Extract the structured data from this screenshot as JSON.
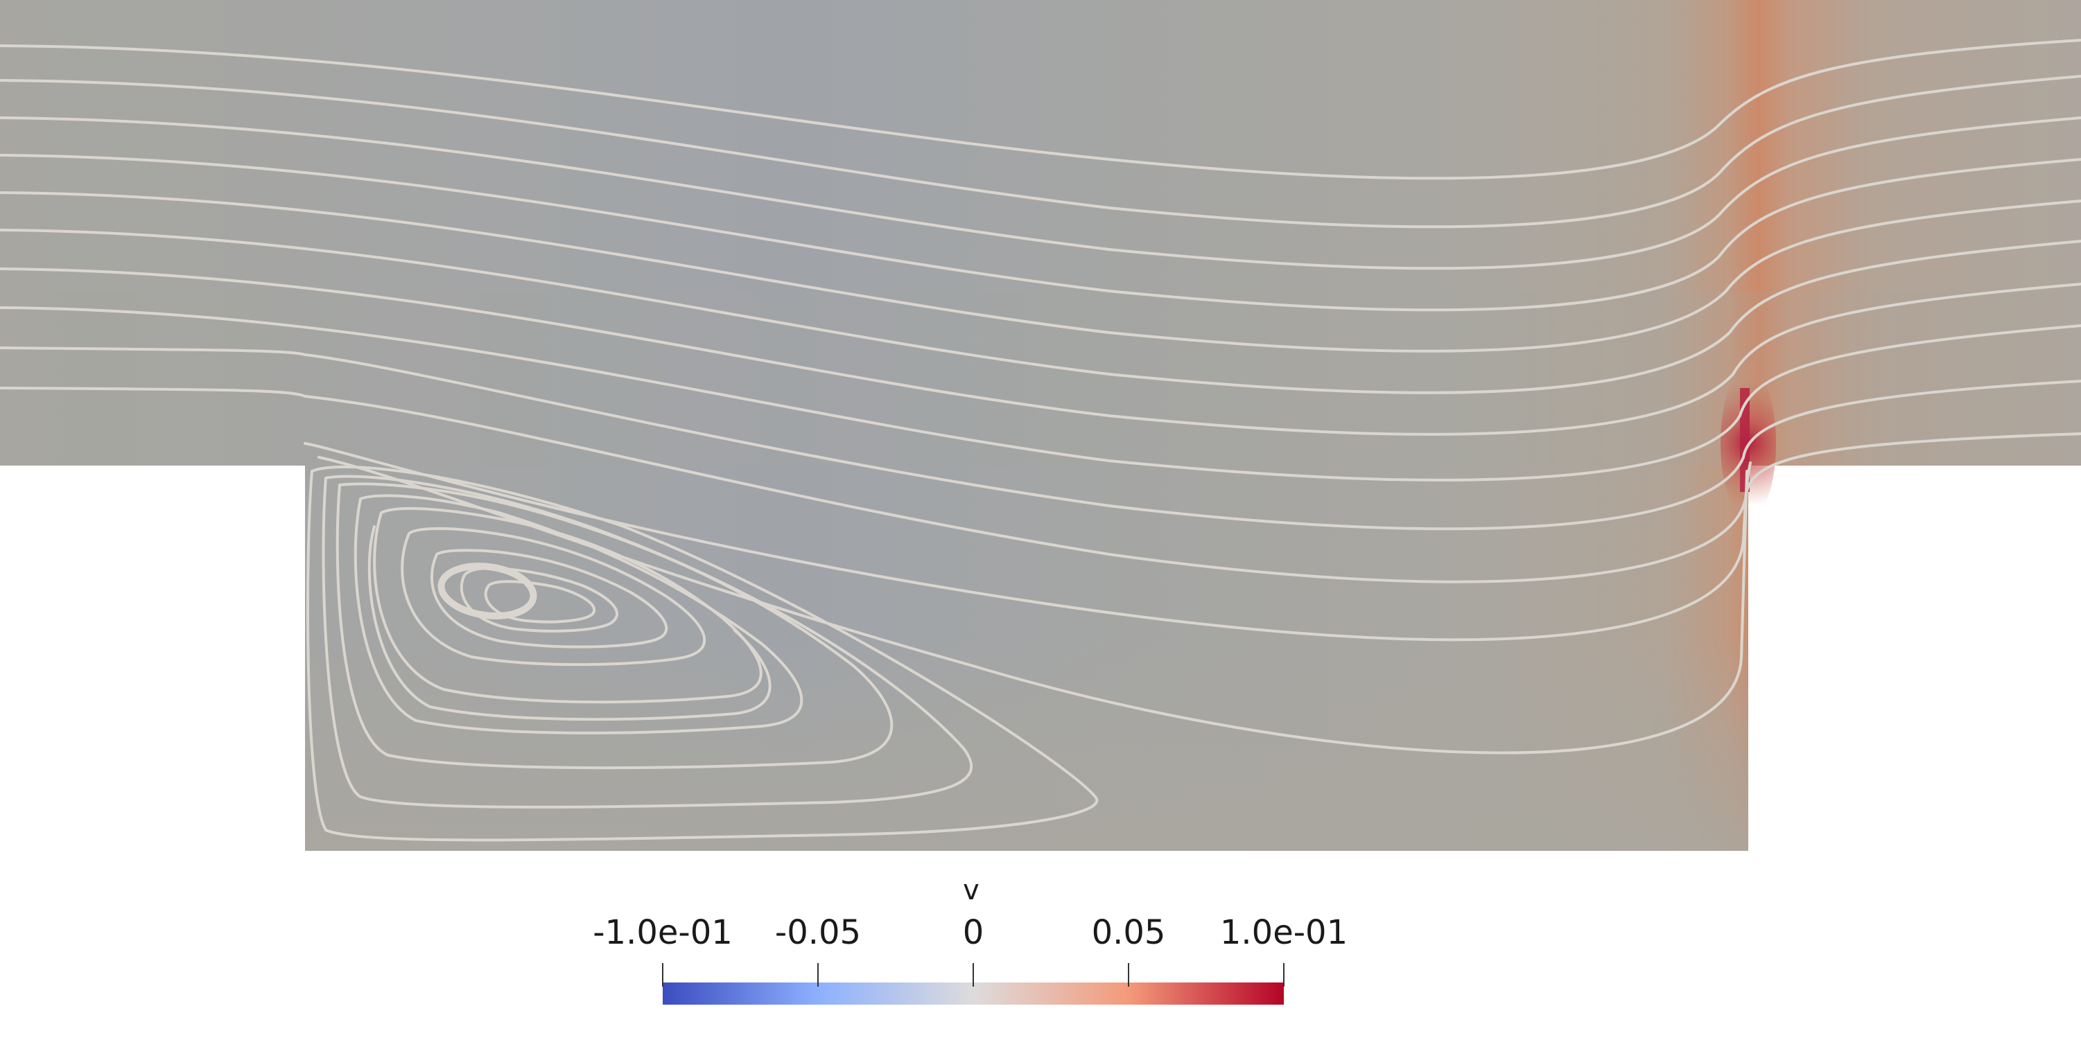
{
  "figure": {
    "colorbar": {
      "title": "v",
      "ticks": [
        "-1.0e-01",
        "-0.05",
        "0",
        "0.05",
        "1.0e-01"
      ],
      "range": [
        -0.1,
        0.1
      ],
      "colormap_stops": [
        "#3b4cc0",
        "#8db0fe",
        "#dddcdc",
        "#f49a7b",
        "#b40426"
      ]
    },
    "background": "#aaa79f",
    "streamline_color": "#dad6cf"
  }
}
